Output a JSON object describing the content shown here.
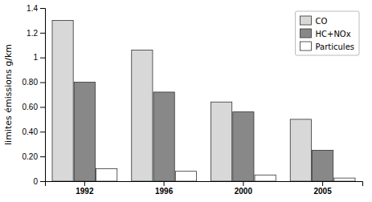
{
  "chart_data": {
    "type": "bar",
    "categories": [
      "1992",
      "1996",
      "2000",
      "2005"
    ],
    "series": [
      {
        "name": "CO",
        "color": "#d8d8d8",
        "values": [
          1.3,
          1.06,
          0.64,
          0.5
        ]
      },
      {
        "name": "HC+NOx",
        "color": "#888888",
        "values": [
          0.8,
          0.72,
          0.56,
          0.25
        ]
      },
      {
        "name": "Particules",
        "color": "#ffffff",
        "values": [
          0.1,
          0.08,
          0.05,
          0.025
        ]
      }
    ],
    "y_label": "limites émissions g/km",
    "ylim": [
      0,
      1.4
    ],
    "yticks": [
      0,
      {
        "value": 0.2,
        "label": "0.20"
      },
      {
        "value": 0.4,
        "label": "0.40"
      },
      {
        "value": 0.6,
        "label": "0.60"
      },
      {
        "value": 0.8,
        "label": "0.80"
      },
      1,
      1.2,
      1.4
    ],
    "legend": "upper right",
    "grid": false
  }
}
